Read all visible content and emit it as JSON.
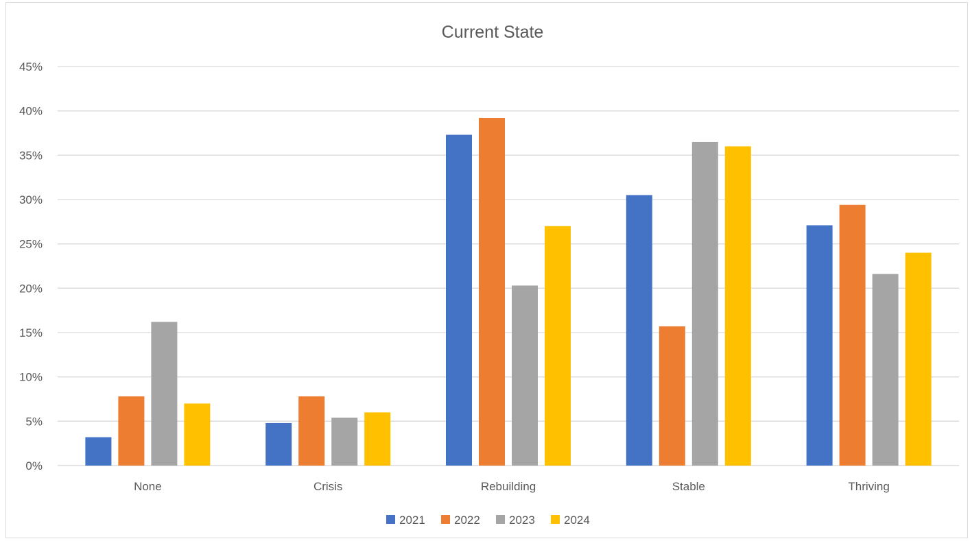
{
  "chart_data": {
    "type": "bar",
    "title": "Current State",
    "xlabel": "",
    "ylabel": "",
    "categories": [
      "None",
      "Crisis",
      "Rebuilding",
      "Stable",
      "Thriving"
    ],
    "series": [
      {
        "name": "2021",
        "color": "#4472C4",
        "values": [
          3.2,
          4.8,
          37.3,
          30.5,
          27.1
        ]
      },
      {
        "name": "2022",
        "color": "#ED7D31",
        "values": [
          7.8,
          7.8,
          39.2,
          15.7,
          29.4
        ]
      },
      {
        "name": "2023",
        "color": "#A5A5A5",
        "values": [
          16.2,
          5.4,
          20.3,
          36.5,
          21.6
        ]
      },
      {
        "name": "2024",
        "color": "#FFC000",
        "values": [
          7.0,
          6.0,
          27.0,
          36.0,
          24.0
        ]
      }
    ],
    "ylim": [
      0,
      45
    ],
    "yticks": [
      "0%",
      "5%",
      "10%",
      "15%",
      "20%",
      "25%",
      "30%",
      "35%",
      "40%",
      "45%"
    ],
    "grid": true,
    "legend": "bottom"
  }
}
